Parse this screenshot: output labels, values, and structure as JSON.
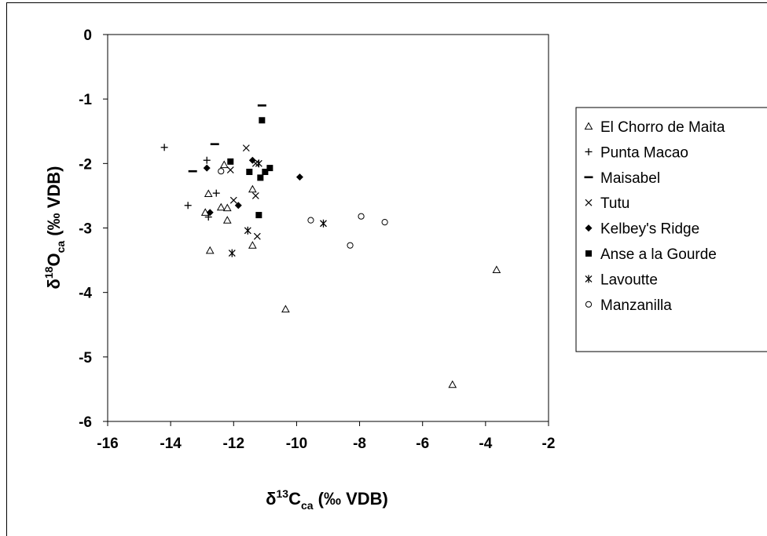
{
  "chart_data": {
    "type": "scatter",
    "title": "",
    "xlabel": {
      "main": "δ",
      "sup": "13",
      "mid": "C",
      "sub": "ca",
      "tail": " (‰ VDB)"
    },
    "ylabel": {
      "main": "δ",
      "sup": "18",
      "mid": "O",
      "sub": "ca",
      "tail": " (‰ VDB)"
    },
    "xlim": [
      -16,
      -2
    ],
    "ylim": [
      -6,
      0
    ],
    "xticks": [
      "-16",
      "-14",
      "-12",
      "-10",
      "-8",
      "-6",
      "-4",
      "-2"
    ],
    "yticks": [
      "0",
      "-1",
      "-2",
      "-3",
      "-4",
      "-5",
      "-6"
    ],
    "grid": false,
    "legend_position": "right",
    "series": [
      {
        "name": "El Chorro de Maita",
        "marker": "triangle",
        "points": [
          [
            -12.9,
            -2.76
          ],
          [
            -12.8,
            -2.47
          ],
          [
            -12.4,
            -2.68
          ],
          [
            -12.2,
            -2.69
          ],
          [
            -12.2,
            -2.88
          ],
          [
            -12.3,
            -2.02
          ],
          [
            -12.75,
            -3.35
          ],
          [
            -11.4,
            -2.4
          ],
          [
            -11.4,
            -3.27
          ],
          [
            -10.35,
            -4.26
          ],
          [
            -5.05,
            -5.43
          ],
          [
            -3.65,
            -3.65
          ]
        ]
      },
      {
        "name": "Punta Macao",
        "marker": "plus",
        "points": [
          [
            -14.2,
            -1.75
          ],
          [
            -13.45,
            -2.65
          ],
          [
            -12.8,
            -2.83
          ],
          [
            -12.55,
            -2.46
          ],
          [
            -12.85,
            -1.95
          ]
        ]
      },
      {
        "name": "Maisabel",
        "marker": "dash",
        "points": [
          [
            -13.3,
            -2.12
          ],
          [
            -12.6,
            -1.7
          ],
          [
            -11.1,
            -1.1
          ]
        ]
      },
      {
        "name": "Tutu",
        "marker": "x",
        "points": [
          [
            -11.6,
            -1.76
          ],
          [
            -12.1,
            -2.1
          ],
          [
            -12.0,
            -2.57
          ],
          [
            -11.3,
            -2.0
          ],
          [
            -11.3,
            -2.5
          ],
          [
            -11.25,
            -3.13
          ]
        ]
      },
      {
        "name": "Kelbey's Ridge",
        "marker": "diamond",
        "points": [
          [
            -12.85,
            -2.07
          ],
          [
            -12.75,
            -2.76
          ],
          [
            -11.85,
            -2.65
          ],
          [
            -11.4,
            -1.95
          ],
          [
            -9.9,
            -2.21
          ]
        ]
      },
      {
        "name": "Anse a la Gourde",
        "marker": "square",
        "points": [
          [
            -12.1,
            -1.97
          ],
          [
            -11.5,
            -2.13
          ],
          [
            -11.15,
            -2.22
          ],
          [
            -11.0,
            -2.13
          ],
          [
            -10.85,
            -2.07
          ],
          [
            -11.1,
            -1.33
          ],
          [
            -11.2,
            -2.8
          ]
        ]
      },
      {
        "name": "Lavoutte",
        "marker": "asterisk",
        "points": [
          [
            -12.05,
            -3.39
          ],
          [
            -11.55,
            -3.04
          ],
          [
            -11.2,
            -2.0
          ],
          [
            -9.15,
            -2.93
          ]
        ]
      },
      {
        "name": "Manzanilla",
        "marker": "circle",
        "points": [
          [
            -12.4,
            -2.12
          ],
          [
            -9.55,
            -2.88
          ],
          [
            -8.3,
            -3.27
          ],
          [
            -7.95,
            -2.82
          ],
          [
            -7.2,
            -2.91
          ]
        ]
      }
    ]
  }
}
